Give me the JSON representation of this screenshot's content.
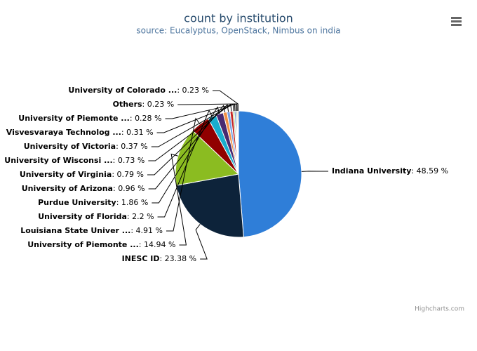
{
  "chart_data": {
    "type": "pie",
    "title": "count by institution",
    "subtitle": "source: Eucalyptus, OpenStack, Nimbus on india",
    "credits": "Highcharts.com",
    "label_separator": ": ",
    "categories": [
      "Indiana University",
      "INESC ID",
      "University of Piemonte ...",
      "Louisiana State Univer ...",
      "University of Florida",
      "Purdue University",
      "University of Arizona",
      "University of Virginia",
      "University of Wisconsi ...",
      "University of Victoria",
      "Visvesvaraya Technolog ...",
      "University of Piemonte ...",
      "Others",
      "University of Colorado ..."
    ],
    "values": [
      48.59,
      23.38,
      14.94,
      4.91,
      2.2,
      1.86,
      0.96,
      0.79,
      0.73,
      0.37,
      0.31,
      0.28,
      0.23,
      0.23
    ],
    "value_labels": [
      "48.59 %",
      "23.38 %",
      "14.94 %",
      "4.91 %",
      "2.2 %",
      "1.86 %",
      "0.96 %",
      "0.79 %",
      "0.73 %",
      "0.37 %",
      "0.31 %",
      "0.28 %",
      "0.23 %",
      "0.23 %"
    ],
    "colors": [
      "#2f7ed8",
      "#0d233a",
      "#8bbc21",
      "#910000",
      "#1aadce",
      "#492970",
      "#f28f43",
      "#77a1e5",
      "#c42525",
      "#a6c96a",
      "#2f7ed8",
      "#0d233a",
      "#8bbc21",
      "#910000"
    ]
  }
}
